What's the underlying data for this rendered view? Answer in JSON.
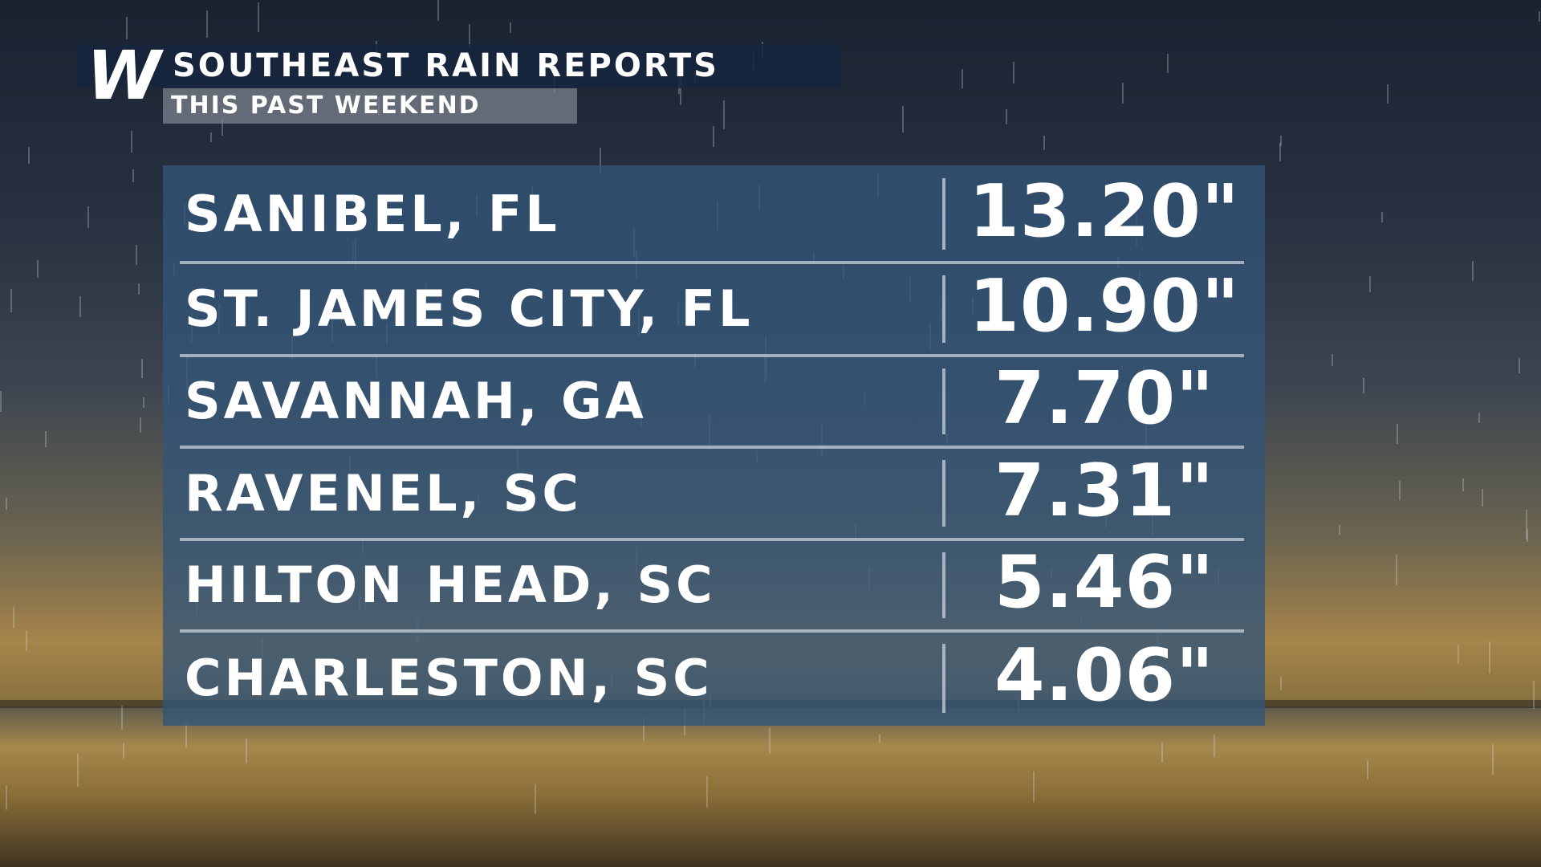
{
  "header": {
    "logo": "W",
    "title": "SOUTHEAST RAIN REPORTS",
    "subtitle": "THIS PAST WEEKEND"
  },
  "table": {
    "rows": [
      [
        "SANIBEL, FL",
        "13.20\""
      ],
      [
        "ST. JAMES CITY, FL",
        "10.90\""
      ],
      [
        "SAVANNAH, GA",
        "7.70\""
      ],
      [
        "RAVENEL,  SC",
        "7.31\""
      ],
      [
        "HILTON HEAD, SC",
        "5.46\""
      ],
      [
        "CHARLESTON, SC",
        "4.06\""
      ]
    ]
  }
}
